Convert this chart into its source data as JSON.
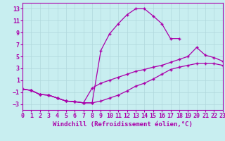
{
  "xlabel": "Windchill (Refroidissement éolien,°C)",
  "bg_color": "#c8eef0",
  "grid_color": "#b0d8dc",
  "line_color": "#aa00aa",
  "marker": "+",
  "xlim": [
    0,
    23
  ],
  "ylim": [
    -4,
    14
  ],
  "xticks": [
    0,
    1,
    2,
    3,
    4,
    5,
    6,
    7,
    8,
    9,
    10,
    11,
    12,
    13,
    14,
    15,
    16,
    17,
    18,
    19,
    20,
    21,
    22,
    23
  ],
  "yticks": [
    -3,
    -1,
    1,
    3,
    5,
    7,
    9,
    11,
    13
  ],
  "line_arch_x": [
    0,
    1,
    2,
    3,
    4,
    5,
    6,
    7,
    8,
    9,
    10,
    11,
    12,
    13,
    14,
    15,
    16,
    17,
    18
  ],
  "line_arch_y": [
    -0.5,
    -0.7,
    -1.4,
    -1.5,
    -2.0,
    -2.5,
    -2.6,
    -2.8,
    -2.8,
    6.0,
    8.8,
    10.5,
    12.0,
    13.0,
    13.0,
    11.8,
    10.5,
    8.0,
    8.0
  ],
  "line_diag1_x": [
    0,
    1,
    2,
    3,
    4,
    5,
    6,
    7,
    8,
    9,
    10,
    11,
    12,
    13,
    14,
    15,
    16,
    17,
    18,
    19,
    20,
    21,
    22,
    23
  ],
  "line_diag1_y": [
    -0.5,
    -0.7,
    -1.4,
    -1.5,
    -2.0,
    -2.5,
    -2.6,
    -2.8,
    -2.8,
    -2.5,
    -2.0,
    -1.5,
    -0.8,
    0.0,
    0.5,
    1.2,
    2.0,
    2.8,
    3.2,
    3.5,
    3.8,
    3.8,
    3.8,
    3.5
  ],
  "line_diag2_x": [
    0,
    1,
    2,
    3,
    4,
    5,
    6,
    7,
    8,
    9,
    10,
    11,
    12,
    13,
    14,
    15,
    16,
    17,
    18,
    19,
    20,
    21,
    22,
    23
  ],
  "line_diag2_y": [
    -0.5,
    -0.7,
    -1.4,
    -1.5,
    -2.0,
    -2.5,
    -2.6,
    -2.8,
    -0.3,
    0.5,
    1.0,
    1.5,
    2.0,
    2.5,
    2.8,
    3.2,
    3.5,
    4.0,
    4.5,
    5.0,
    6.5,
    5.2,
    4.8,
    4.2
  ],
  "xlabel_fontsize": 6.5,
  "tick_fontsize": 6.0,
  "linewidth": 0.9,
  "markersize": 3.5
}
